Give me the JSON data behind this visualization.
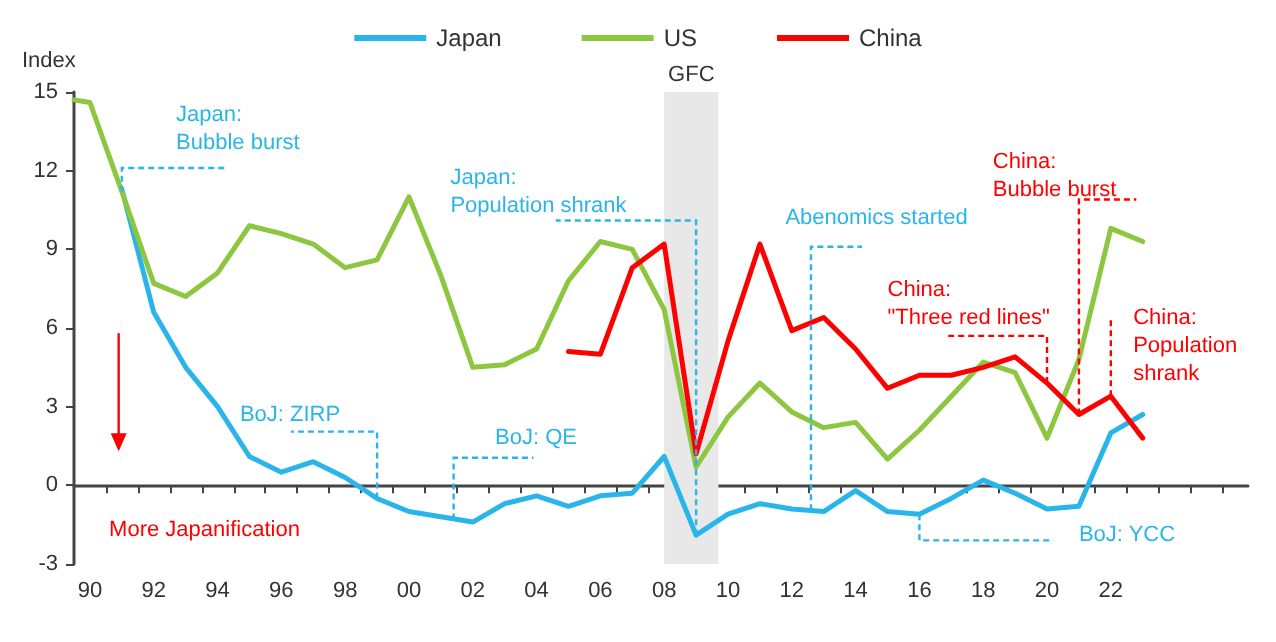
{
  "chart_data": {
    "type": "line",
    "ylabel": "Index",
    "legend": "top",
    "marker": "none",
    "line_style": "solid",
    "xlim": [
      1989.5,
      2026.3
    ],
    "ylim": [
      -3,
      15
    ],
    "yticks": [
      -3,
      0,
      3,
      6,
      9,
      12,
      15
    ],
    "xticks": [
      {
        "value": 1990,
        "label": "90"
      },
      {
        "value": 1992,
        "label": "92"
      },
      {
        "value": 1994,
        "label": "94"
      },
      {
        "value": 1996,
        "label": "96"
      },
      {
        "value": 1998,
        "label": "98"
      },
      {
        "value": 2000,
        "label": "00"
      },
      {
        "value": 2002,
        "label": "02"
      },
      {
        "value": 2004,
        "label": "04"
      },
      {
        "value": 2006,
        "label": "06"
      },
      {
        "value": 2008,
        "label": "08"
      },
      {
        "value": 2010,
        "label": "10"
      },
      {
        "value": 2012,
        "label": "12"
      },
      {
        "value": 2014,
        "label": "14"
      },
      {
        "value": 2016,
        "label": "16"
      },
      {
        "value": 2018,
        "label": "18"
      },
      {
        "value": 2020,
        "label": "20"
      },
      {
        "value": 2022,
        "label": "22"
      },
      {
        "value": 1990.5,
        "label": null
      },
      {
        "value": 1991.5,
        "label": null
      },
      {
        "value": 1992.5,
        "label": null
      },
      {
        "value": 1993.5,
        "label": null
      },
      {
        "value": 1994.5,
        "label": null
      },
      {
        "value": 1995.5,
        "label": null
      },
      {
        "value": 1996.5,
        "label": null
      },
      {
        "value": 1997.5,
        "label": null
      },
      {
        "value": 1998.5,
        "label": null
      },
      {
        "value": 1999.5,
        "label": null
      },
      {
        "value": 2000.5,
        "label": null
      },
      {
        "value": 2001.5,
        "label": null
      },
      {
        "value": 2002.5,
        "label": null
      },
      {
        "value": 2003.5,
        "label": null
      },
      {
        "value": 2004.5,
        "label": null
      },
      {
        "value": 2005.5,
        "label": null
      },
      {
        "value": 2006.5,
        "label": null
      },
      {
        "value": 2007.5,
        "label": null
      },
      {
        "value": 2008.5,
        "label": null
      },
      {
        "value": 2009.5,
        "label": null
      },
      {
        "value": 2010.5,
        "label": null
      },
      {
        "value": 2011.5,
        "label": null
      },
      {
        "value": 2012.5,
        "label": null
      },
      {
        "value": 2013.5,
        "label": null
      },
      {
        "value": 2014.5,
        "label": null
      },
      {
        "value": 2015.5,
        "label": null
      },
      {
        "value": 2016.5,
        "label": null
      },
      {
        "value": 2017.5,
        "label": null
      },
      {
        "value": 2018.5,
        "label": null
      },
      {
        "value": 2019.5,
        "label": null
      },
      {
        "value": 2020.5,
        "label": null
      },
      {
        "value": 2021.5,
        "label": null
      },
      {
        "value": 2022.5,
        "label": null
      },
      {
        "value": 2023.5,
        "label": null
      },
      {
        "value": 2024.5,
        "label": null
      },
      {
        "value": 2025.5,
        "label": null
      }
    ],
    "series": [
      {
        "name": "Japan",
        "color": "#29b5ea",
        "x": [
          1991,
          1992,
          1993,
          1994,
          1995,
          1996,
          1997,
          1998,
          1999,
          2000,
          2001,
          2002,
          2003,
          2004,
          2005,
          2006,
          2007,
          2008,
          2009,
          2010,
          2011,
          2012,
          2013,
          2014,
          2015,
          2016,
          2017,
          2018,
          2019,
          2020,
          2021,
          2022,
          2023
        ],
        "values": [
          11.3,
          6.6,
          4.5,
          3.0,
          1.1,
          0.5,
          0.9,
          0.3,
          -0.5,
          -1.0,
          -1.2,
          -1.4,
          -0.7,
          -0.4,
          -0.8,
          -0.4,
          -0.3,
          1.1,
          -1.9,
          -1.1,
          -0.7,
          -0.9,
          -1.0,
          -0.2,
          -1.0,
          -1.1,
          -0.5,
          0.2,
          -0.3,
          -0.9,
          -0.8,
          2.0,
          2.7
        ]
      },
      {
        "name": "US",
        "color": "#8dc63f",
        "x": [
          1989.5,
          1990,
          1991,
          1992,
          1993,
          1994,
          1995,
          1996,
          1997,
          1998,
          1999,
          2000,
          2001,
          2002,
          2003,
          2004,
          2005,
          2006,
          2007,
          2008,
          2009,
          2010,
          2011,
          2012,
          2013,
          2014,
          2015,
          2016,
          2017,
          2018,
          2019,
          2020,
          2021,
          2022,
          2023
        ],
        "values": [
          14.7,
          14.6,
          11.2,
          7.7,
          7.2,
          8.1,
          9.9,
          9.6,
          9.2,
          8.3,
          8.6,
          11.0,
          8.0,
          4.5,
          4.6,
          5.2,
          7.8,
          9.3,
          9.0,
          6.7,
          0.7,
          2.6,
          3.9,
          2.8,
          2.2,
          2.4,
          1.0,
          2.1,
          3.4,
          4.7,
          4.3,
          1.8,
          4.8,
          9.8,
          9.3
        ]
      },
      {
        "name": "China",
        "color": "#ff0000",
        "x": [
          2005,
          2006,
          2007,
          2008,
          2009,
          2010,
          2011,
          2012,
          2013,
          2014,
          2015,
          2016,
          2017,
          2018,
          2019,
          2020,
          2021,
          2022,
          2023
        ],
        "values": [
          5.1,
          5.0,
          8.3,
          9.2,
          1.2,
          5.5,
          9.2,
          5.9,
          6.4,
          5.2,
          3.7,
          4.2,
          4.2,
          4.5,
          4.9,
          3.9,
          2.7,
          3.4,
          1.8
        ]
      }
    ],
    "bands": [
      {
        "axis": "x",
        "from": 2008,
        "to": 2009.7,
        "label": "GFC",
        "color": "#e8e8e8"
      }
    ],
    "annotations": [
      {
        "text": "Japan:\nBubble burst",
        "x": 1991,
        "y": 11.2
      },
      {
        "text": "Japan:\nPopulation shrank",
        "x": 2009,
        "y": -1.9
      },
      {
        "text": "Abenomics started",
        "x": 2012.6,
        "y": -0.95
      },
      {
        "text": "BoJ: ZIRP",
        "x": 1999,
        "y": -0.5
      },
      {
        "text": "BoJ: QE",
        "x": 2001.4,
        "y": -1.3
      },
      {
        "text": "BoJ: YCC",
        "x": 2016,
        "y": -1.1
      },
      "More Japanification",
      {
        "text": "China:\n\"Three red lines\"",
        "x": 2020,
        "y": 3.9
      },
      {
        "text": "China:\nBubble burst",
        "x": 2021,
        "y": 2.7
      },
      {
        "text": "China:\nPopulation\nshrank",
        "x": 2022,
        "y": 3.4
      }
    ]
  }
}
